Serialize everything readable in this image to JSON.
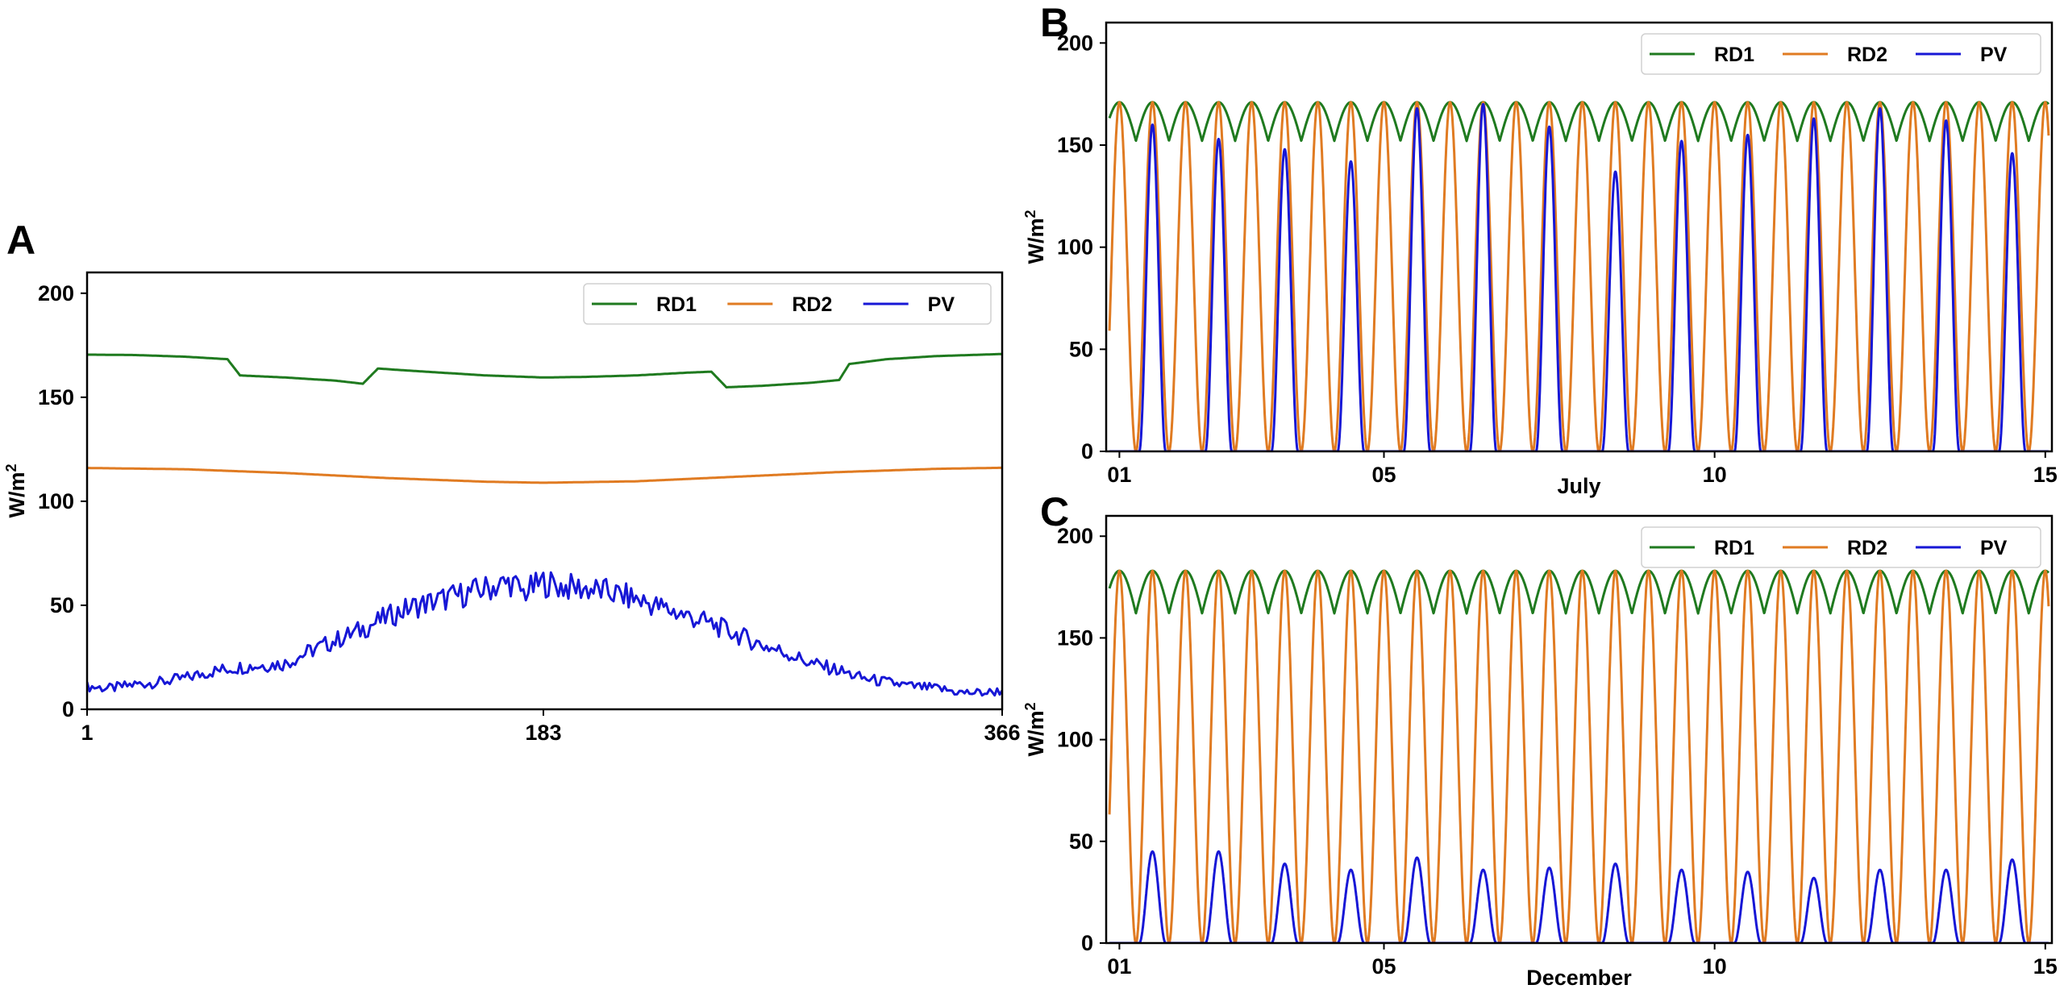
{
  "chart_data": [
    {
      "panel": "A",
      "type": "line",
      "title": "",
      "xlabel": "",
      "ylabel": "W/m",
      "ylabel_sup": "2",
      "xlim": [
        1,
        366
      ],
      "ylim": [
        0,
        210
      ],
      "xticks": [
        1,
        183,
        366
      ],
      "xtick_labels": [
        "1",
        "183",
        "366"
      ],
      "yticks": [
        0,
        50,
        100,
        150,
        200
      ],
      "grid": false,
      "legend_position": "top-right",
      "series": [
        {
          "name": "RD1",
          "color": "#1f7a1f",
          "x": [
            1,
            20,
            40,
            57,
            62,
            80,
            100,
            111,
            117,
            140,
            160,
            183,
            200,
            220,
            240,
            250,
            256,
            270,
            290,
            301,
            305,
            320,
            340,
            366
          ],
          "y": [
            170.5,
            170.3,
            169.5,
            168.3,
            160.5,
            159.5,
            158.0,
            156.5,
            163.8,
            162.0,
            160.5,
            159.5,
            159.8,
            160.5,
            161.8,
            162.3,
            154.8,
            155.5,
            157.0,
            158.3,
            166.0,
            168.3,
            169.8,
            170.8
          ]
        },
        {
          "name": "RD2",
          "color": "#e07b22",
          "x": [
            1,
            40,
            80,
            120,
            160,
            183,
            220,
            260,
            300,
            340,
            366
          ],
          "y": [
            116.0,
            115.4,
            113.6,
            111.2,
            109.4,
            108.9,
            109.6,
            111.8,
            114.0,
            115.6,
            116.1
          ]
        },
        {
          "name": "PV",
          "color": "#1717d6",
          "x": [
            1,
            10,
            20,
            30,
            40,
            50,
            60,
            70,
            80,
            90,
            100,
            110,
            120,
            130,
            140,
            150,
            160,
            170,
            175,
            183,
            190,
            200,
            210,
            220,
            230,
            240,
            250,
            260,
            270,
            280,
            290,
            300,
            310,
            320,
            330,
            340,
            350,
            360,
            366
          ],
          "y": [
            11,
            10,
            12,
            13,
            15,
            18,
            20,
            21,
            22,
            28,
            33,
            38,
            44,
            49,
            52,
            55,
            58,
            61,
            56,
            61,
            59,
            58,
            56,
            53,
            49,
            45,
            41,
            36,
            31,
            27,
            22,
            19,
            15,
            13,
            11,
            10,
            8,
            8,
            9
          ]
        }
      ]
    },
    {
      "panel": "B",
      "type": "line",
      "title": "",
      "xlabel": "July",
      "ylabel": "W/m",
      "ylabel_sup": "2",
      "xlim": [
        0.8,
        15.1
      ],
      "ylim": [
        0,
        210
      ],
      "xticks": [
        1,
        5,
        10,
        15
      ],
      "xtick_labels": [
        "01",
        "05",
        "10",
        "15"
      ],
      "yticks": [
        0,
        50,
        100,
        150,
        200
      ],
      "grid": false,
      "legend_position": "top-right",
      "series": [
        {
          "name": "RD1",
          "color": "#1f7a1f",
          "shape": "arched oscillation, period 0.5 day",
          "min": 152,
          "max": 171
        },
        {
          "name": "RD2",
          "color": "#e07b22",
          "shape": "cosine oscillation, period 0.5 day",
          "min": 0,
          "max": 171
        },
        {
          "name": "PV",
          "color": "#1717d6",
          "shape": "daily bell-shaped peaks",
          "days": [
            1,
            2,
            3,
            4,
            5,
            6,
            7,
            8,
            9,
            10,
            11,
            12,
            13,
            14
          ],
          "daily_peak": [
            160,
            153,
            148,
            142,
            168,
            170,
            159,
            137,
            152,
            155,
            163,
            168,
            162,
            146
          ]
        }
      ]
    },
    {
      "panel": "C",
      "type": "line",
      "title": "",
      "xlabel": "December",
      "ylabel": "W/m",
      "ylabel_sup": "2",
      "xlim": [
        0.8,
        15.1
      ],
      "ylim": [
        0,
        210
      ],
      "xticks": [
        1,
        5,
        10,
        15
      ],
      "xtick_labels": [
        "01",
        "05",
        "10",
        "15"
      ],
      "yticks": [
        0,
        50,
        100,
        150,
        200
      ],
      "grid": false,
      "legend_position": "top-right",
      "series": [
        {
          "name": "RD1",
          "color": "#1f7a1f",
          "shape": "arched oscillation, period 0.5 day",
          "min": 162,
          "max": 183
        },
        {
          "name": "RD2",
          "color": "#e07b22",
          "shape": "cosine oscillation, period 0.5 day",
          "min": 0,
          "max": 183
        },
        {
          "name": "PV",
          "color": "#1717d6",
          "shape": "daily bell-shaped peaks",
          "days": [
            1,
            2,
            3,
            4,
            5,
            6,
            7,
            8,
            9,
            10,
            11,
            12,
            13,
            14
          ],
          "daily_peak": [
            45,
            45,
            39,
            36,
            42,
            36,
            37,
            39,
            36,
            35,
            32,
            36,
            36,
            41
          ]
        }
      ]
    }
  ]
}
